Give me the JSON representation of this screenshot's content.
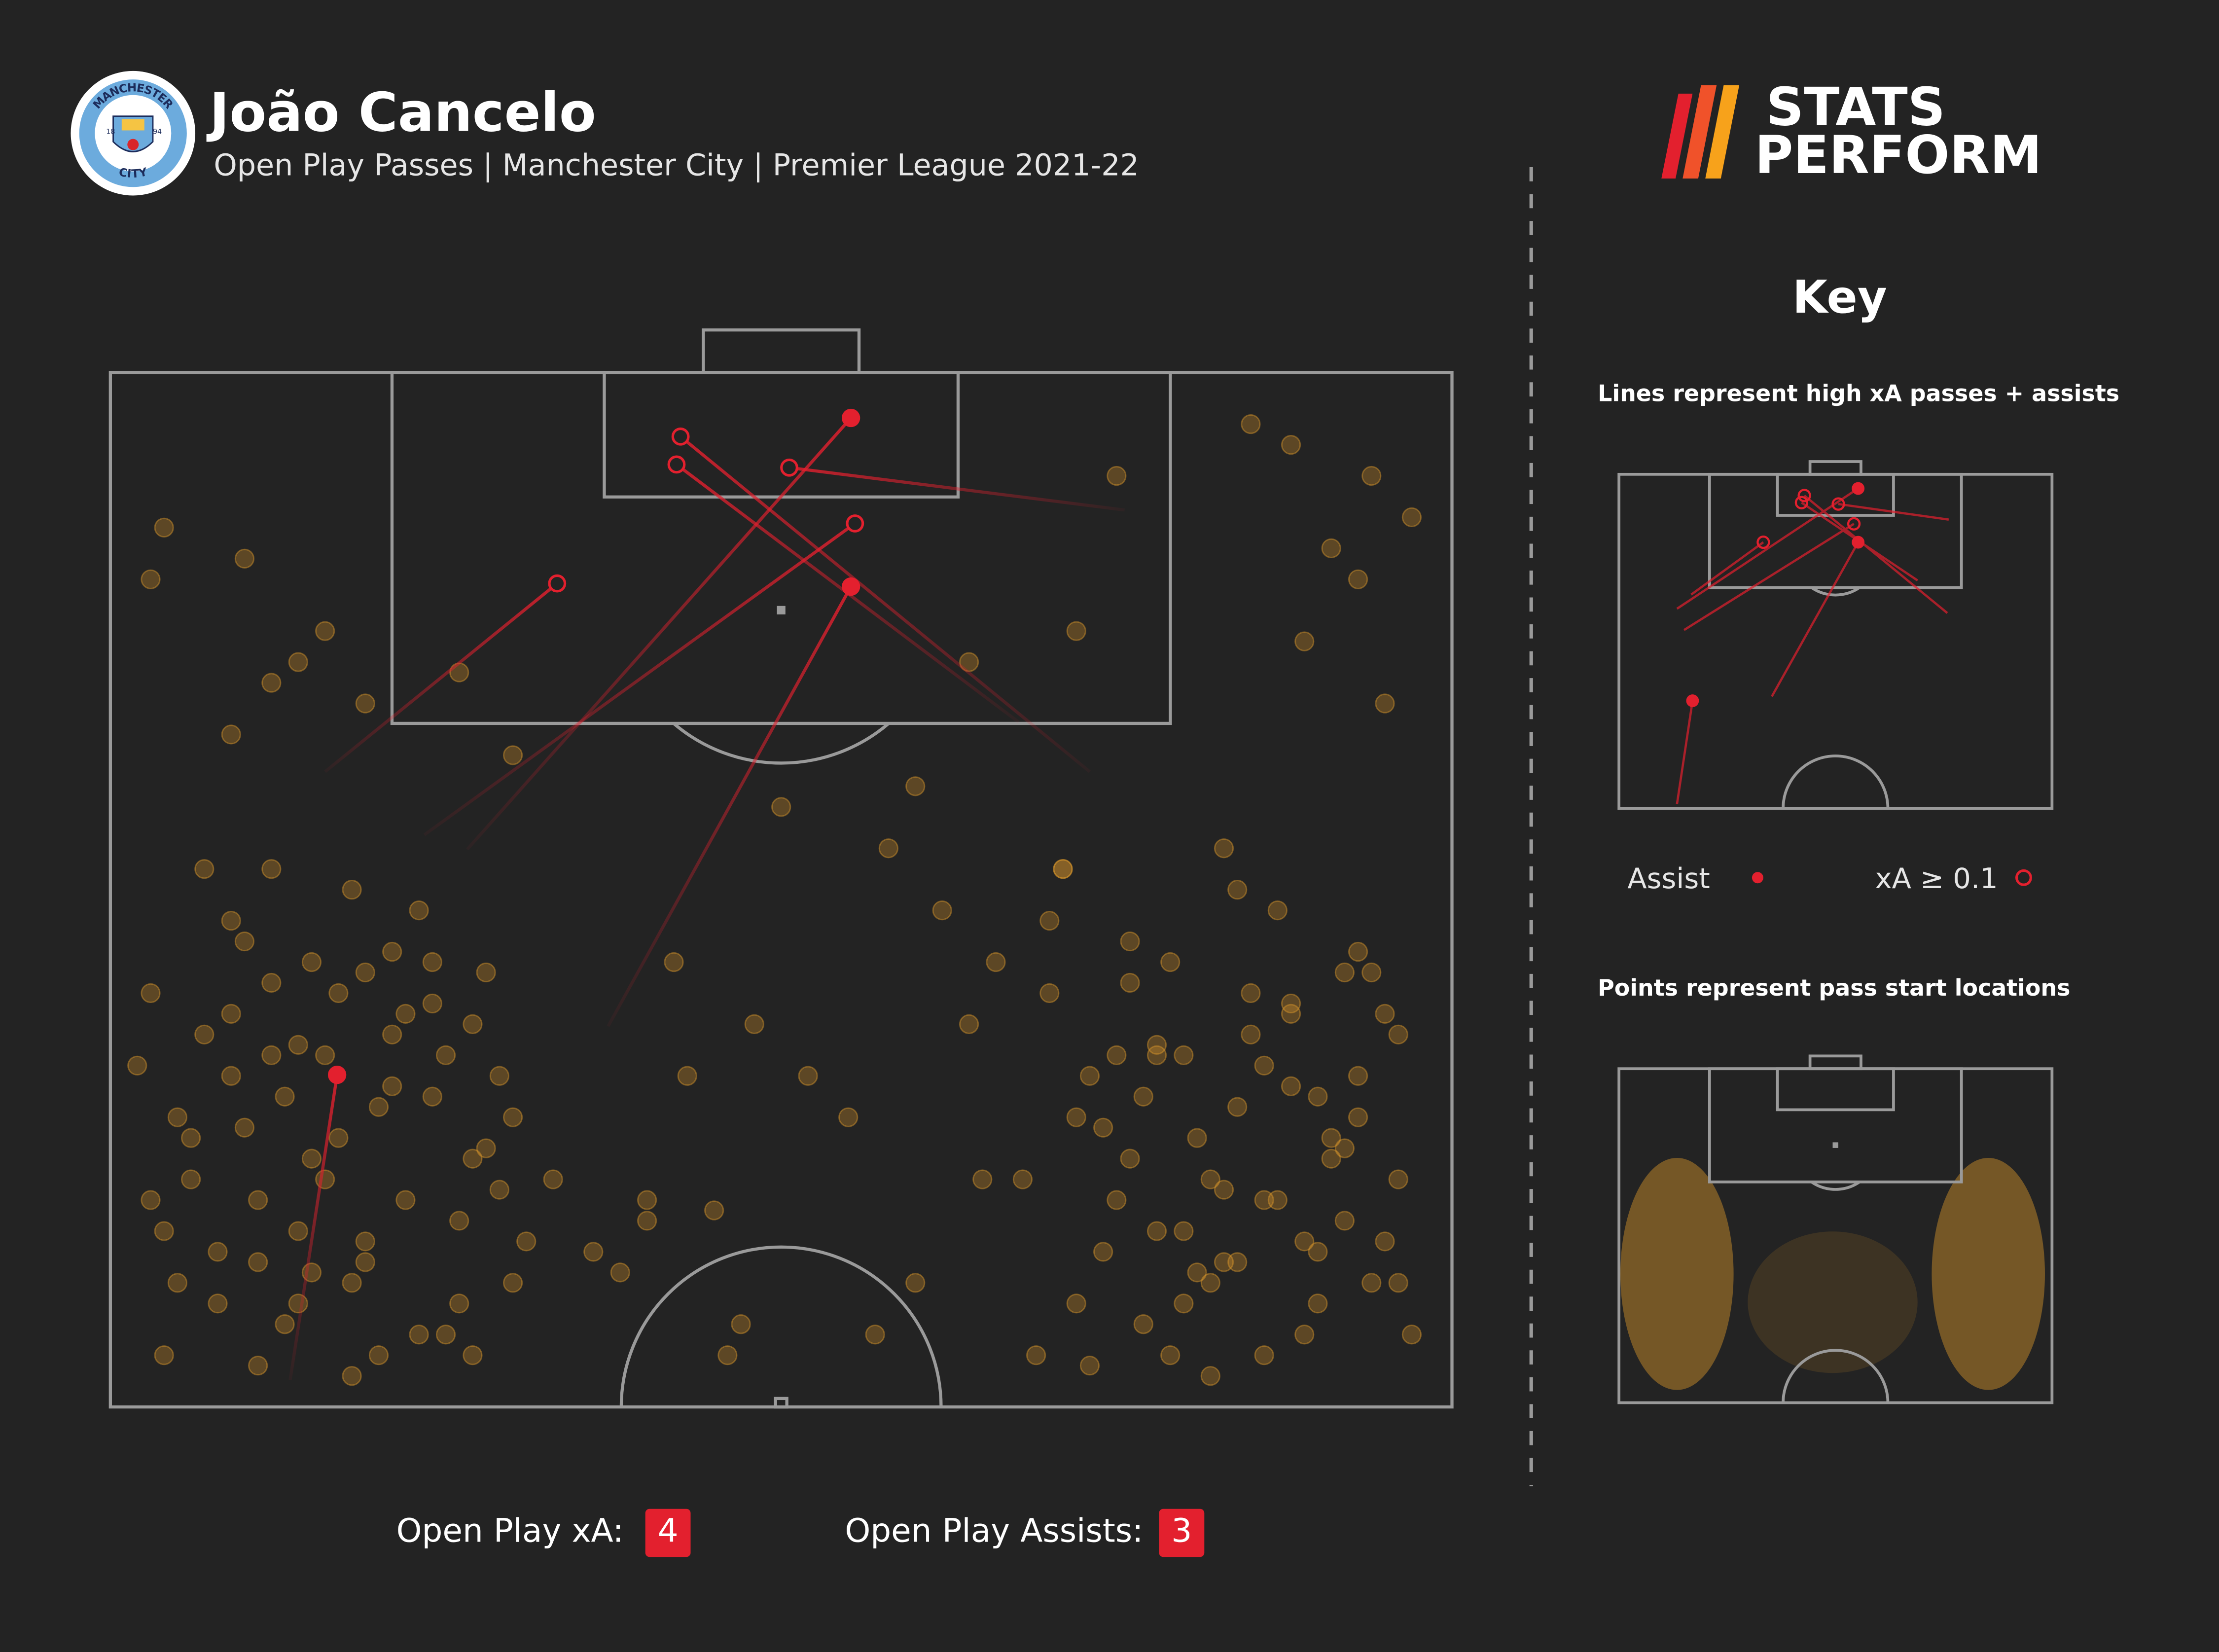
{
  "chart_data": {
    "type": "pitch",
    "title": "João Cancelo",
    "subtitle": "Open Play Passes | Manchester City | Premier League 2021-22",
    "badge": [
      "MANCHESTER",
      "CITY",
      "18",
      "94"
    ],
    "logo": [
      "STATS",
      "PERFORM"
    ],
    "key_title": "Key",
    "key_notes": [
      "Lines represent high xA passes + assists",
      "Points represent pass start locations"
    ],
    "xlim": [
      0,
      100
    ],
    "ylim": [
      0,
      100
    ],
    "series": [
      {
        "name": "Assist",
        "color": "#e3202e",
        "filled": true,
        "x_start": [
          26.6,
          37.1,
          13.4
        ],
        "y_start": [
          46.1,
          63.2,
          97.4
        ],
        "x": [
          55.2,
          55.2,
          16.9
        ],
        "y": [
          4.4,
          20.7,
          67.9
        ]
      },
      {
        "name": "xA ≥ 0.1",
        "color": "#e3202e",
        "filled": false,
        "x_start": [
          73.0,
          67.7,
          75.6,
          23.4,
          16.0
        ],
        "y_start": [
          38.6,
          33.8,
          13.3,
          44.7,
          38.6
        ],
        "x": [
          42.5,
          42.2,
          50.6,
          55.5,
          33.3
        ],
        "y": [
          6.2,
          8.9,
          9.2,
          14.6,
          20.4
        ]
      }
    ],
    "points": {
      "color": "#d9962a",
      "x": [
        3,
        5,
        8,
        10,
        12,
        14,
        16,
        18,
        20,
        22,
        24,
        26,
        28,
        30,
        4,
        7,
        9,
        11,
        13,
        15,
        17,
        19,
        21,
        23,
        25,
        27,
        29,
        31,
        6,
        8,
        10,
        12,
        14,
        16,
        18,
        20,
        22,
        24,
        26,
        28,
        5,
        7,
        9,
        11,
        13,
        15,
        17,
        19,
        21,
        23,
        25,
        27,
        29,
        3,
        6,
        9,
        12,
        15,
        18,
        21,
        24,
        27,
        30,
        33,
        36,
        2,
        4,
        11,
        14,
        19,
        70,
        72,
        74,
        76,
        78,
        80,
        82,
        84,
        86,
        88,
        90,
        92,
        94,
        96,
        69,
        71,
        73,
        75,
        77,
        79,
        81,
        83,
        85,
        87,
        89,
        91,
        93,
        95,
        68,
        72,
        74,
        76,
        78,
        80,
        82,
        84,
        86,
        88,
        90,
        92,
        94,
        96,
        70,
        73,
        77,
        81,
        85,
        89,
        93,
        97,
        75,
        79,
        83,
        87,
        91,
        95,
        71,
        76,
        82,
        88,
        66,
        64,
        93,
        96,
        90,
        86,
        80,
        84,
        78,
        92,
        4,
        3,
        10,
        16,
        14,
        42,
        50,
        58,
        62,
        48,
        55,
        52,
        45,
        40,
        60,
        65,
        38,
        47,
        57,
        46,
        85,
        88,
        94,
        97,
        91,
        75,
        72,
        93,
        9,
        12,
        19,
        26,
        60,
        40,
        43,
        89,
        95,
        30,
        64,
        83
      ],
      "y": [
        60,
        72,
        85,
        55,
        66,
        90,
        78,
        50,
        95,
        62,
        70,
        82,
        58,
        88,
        95,
        48,
        68,
        80,
        92,
        57,
        74,
        86,
        64,
        52,
        93,
        76,
        68,
        84,
        78,
        90,
        73,
        59,
        83,
        66,
        97,
        71,
        80,
        61,
        90,
        75,
        88,
        64,
        53,
        96,
        70,
        87,
        60,
        84,
        56,
        93,
        66,
        95,
        79,
        80,
        74,
        62,
        48,
        76,
        88,
        69,
        57,
        63,
        72,
        78,
        85,
        67,
        83,
        86,
        65,
        58,
        60,
        72,
        85,
        55,
        66,
        90,
        78,
        50,
        95,
        62,
        70,
        82,
        58,
        88,
        95,
        48,
        68,
        80,
        92,
        57,
        74,
        86,
        64,
        52,
        93,
        76,
        68,
        84,
        78,
        90,
        73,
        59,
        83,
        66,
        97,
        71,
        80,
        61,
        90,
        75,
        88,
        64,
        53,
        96,
        70,
        87,
        60,
        84,
        56,
        93,
        66,
        95,
        79,
        80,
        74,
        62,
        48,
        76,
        88,
        69,
        57,
        63,
        72,
        78,
        85,
        67,
        83,
        86,
        65,
        58,
        15,
        20,
        18,
        25,
        28,
        57,
        42,
        46,
        52,
        63,
        72,
        68,
        81,
        82,
        88,
        78,
        87,
        92,
        93,
        95,
        5,
        7,
        10,
        14,
        17,
        10,
        25,
        20,
        35,
        30,
        32,
        29,
        40,
        80,
        68,
        26,
        32,
        37,
        28,
        46
      ]
    },
    "stats": [
      {
        "label": "Open Play xA:",
        "value": 4
      },
      {
        "label": "Open Play Assists:",
        "value": 3
      }
    ]
  }
}
